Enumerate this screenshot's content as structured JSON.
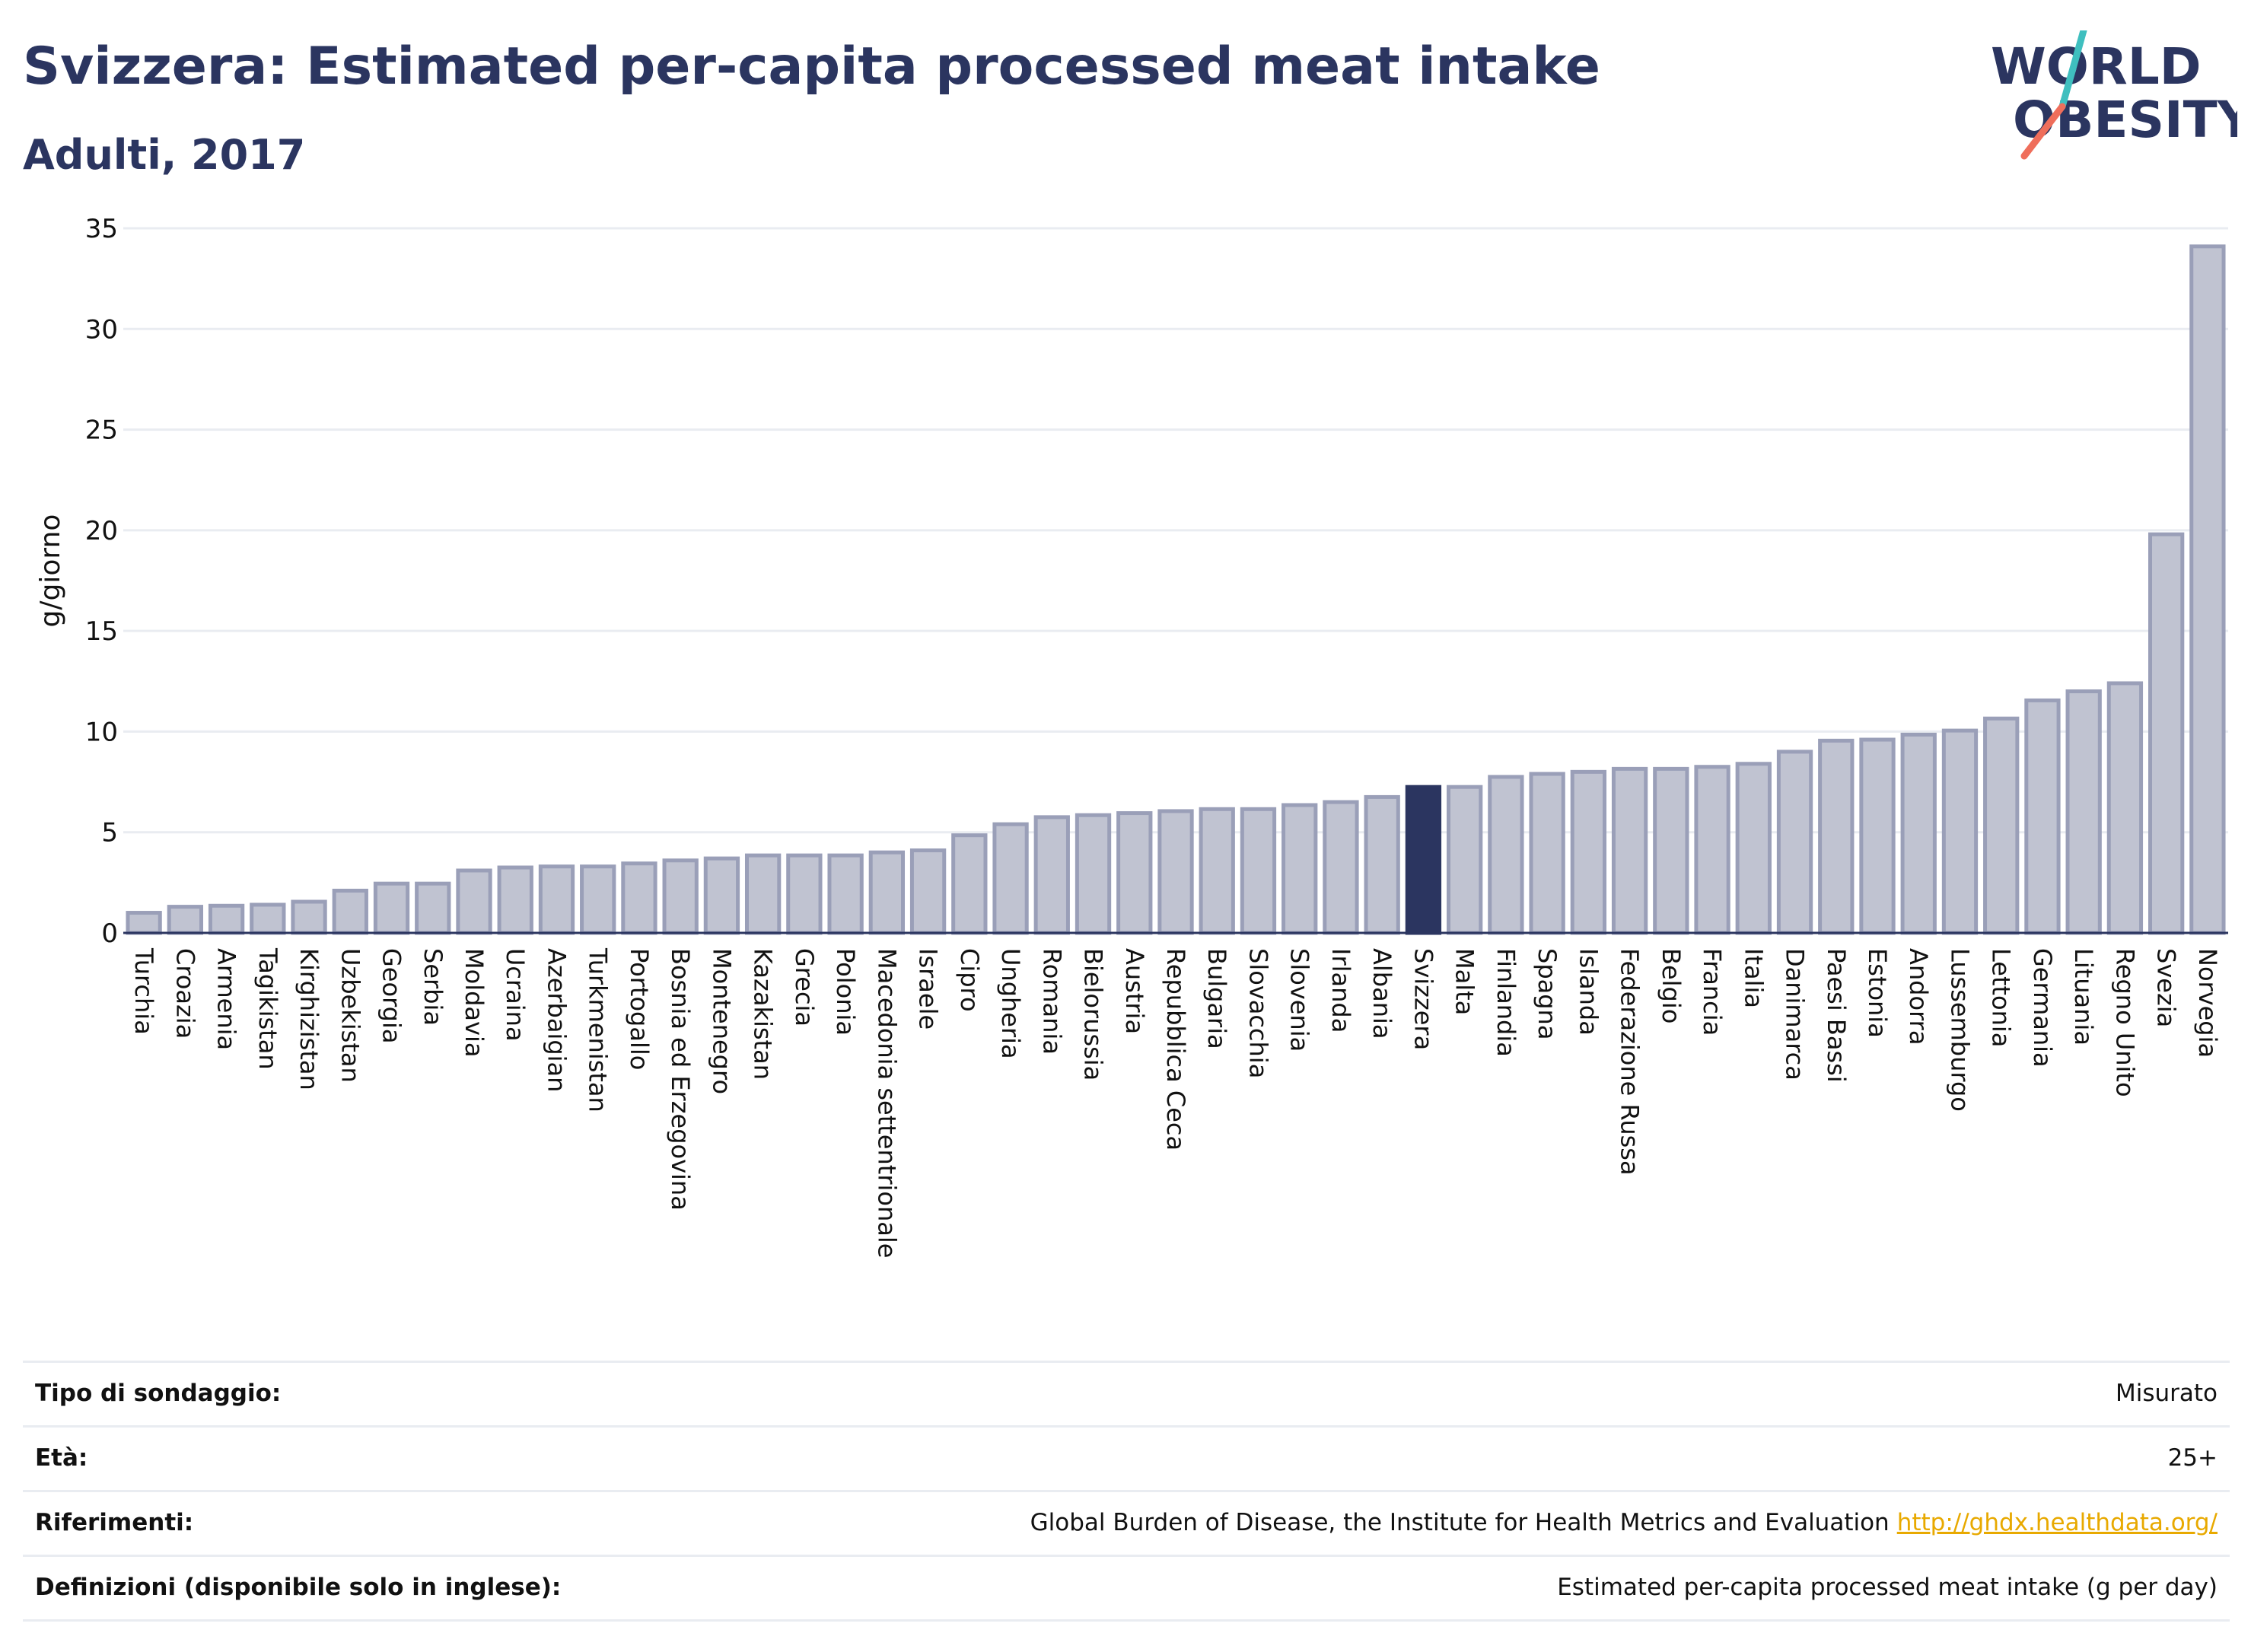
{
  "header": {
    "title": "Svizzera: Estimated per-capita processed meat intake",
    "subtitle": "Adulti, 2017"
  },
  "logo": {
    "line1": "WORLD",
    "line2": "OBESITY"
  },
  "colors": {
    "bar_default": "#c0c3d1",
    "bar_default_stroke": "#9a9fb8",
    "bar_highlight": "#2b3560",
    "grid": "#e9ecf1",
    "axis": "#2b3560",
    "logo_teal": "#3fbfbf",
    "logo_coral": "#ef6e5b"
  },
  "chart_data": {
    "type": "bar",
    "title": "Svizzera: Estimated per-capita processed meat intake",
    "subtitle": "Adulti, 2017",
    "xlabel": "",
    "ylabel": "g/giorno",
    "ylim": [
      0,
      35
    ],
    "yticks": [
      0,
      5,
      10,
      15,
      20,
      25,
      30,
      35
    ],
    "grid": true,
    "highlight": "Svizzera",
    "categories": [
      "Turchia",
      "Croazia",
      "Armenia",
      "Tagikistan",
      "Kirghizistan",
      "Uzbekistan",
      "Georgia",
      "Serbia",
      "Moldavia",
      "Ucraina",
      "Azerbaigian",
      "Turkmenistan",
      "Portogallo",
      "Bosnia ed Erzegovina",
      "Montenegro",
      "Kazakistan",
      "Grecia",
      "Polonia",
      "Macedonia settentrionale",
      "Israele",
      "Cipro",
      "Ungheria",
      "Romania",
      "Bielorussia",
      "Austria",
      "Repubblica Ceca",
      "Bulgaria",
      "Slovacchia",
      "Slovenia",
      "Irlanda",
      "Albania",
      "Svizzera",
      "Malta",
      "Finlandia",
      "Spagna",
      "Islanda",
      "Federazione Russa",
      "Belgio",
      "Francia",
      "Italia",
      "Danimarca",
      "Paesi Bassi",
      "Estonia",
      "Andorra",
      "Lussemburgo",
      "Lettonia",
      "Germania",
      "Lituania",
      "Regno Unito",
      "Svezia",
      "Norvegia"
    ],
    "values": [
      1.0,
      1.3,
      1.35,
      1.4,
      1.55,
      2.1,
      2.45,
      2.45,
      3.1,
      3.25,
      3.3,
      3.3,
      3.45,
      3.6,
      3.7,
      3.85,
      3.85,
      3.85,
      4.0,
      4.1,
      4.85,
      5.4,
      5.75,
      5.85,
      5.95,
      6.05,
      6.15,
      6.15,
      6.35,
      6.5,
      6.75,
      7.25,
      7.25,
      7.75,
      7.9,
      8.0,
      8.15,
      8.15,
      8.25,
      8.4,
      9.0,
      9.55,
      9.6,
      9.85,
      10.05,
      10.65,
      11.55,
      12.0,
      12.4,
      19.8,
      34.1
    ]
  },
  "info": [
    {
      "label": "Tipo di sondaggio:",
      "value": "Misurato"
    },
    {
      "label": "Età:",
      "value": "25+"
    },
    {
      "label": "Riferimenti:",
      "value": "Global Burden of Disease, the Institute for Health Metrics and Evaluation",
      "link": "http://ghdx.healthdata.org/"
    },
    {
      "label": "Definizioni (disponibile solo in inglese):",
      "value": "Estimated per-capita processed meat intake (g per day)"
    }
  ]
}
